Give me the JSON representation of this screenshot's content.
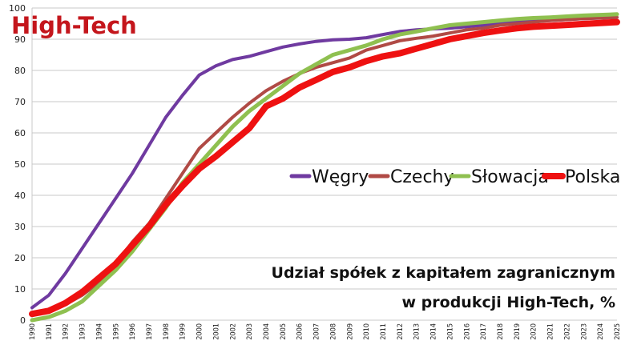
{
  "chart_data": {
    "type": "line",
    "title": "High-Tech",
    "caption_lines": [
      "Udział spółek z kapitałem zagranicznym",
      "w produkcji High-Tech, %"
    ],
    "ylim": [
      0,
      100
    ],
    "yticks": [
      "0",
      "10",
      "20",
      "30",
      "40",
      "50",
      "60",
      "70",
      "80",
      "90",
      "100"
    ],
    "x": [
      "1990",
      "1991",
      "1992",
      "1993",
      "1994",
      "1995",
      "1996",
      "1997",
      "1998",
      "1999",
      "2000",
      "2001",
      "2002",
      "2003",
      "2004",
      "2005",
      "2006",
      "2007",
      "2008",
      "2009",
      "2010",
      "2011",
      "2012",
      "2013",
      "2014",
      "2015",
      "2016",
      "2017",
      "2018",
      "2019",
      "2020",
      "2021",
      "2022",
      "2023",
      "2024",
      "2025"
    ],
    "grid": true,
    "legend_position": "center-right",
    "series": [
      {
        "name": "Węgry",
        "color": "#6f3aa0",
        "width": 4,
        "values": [
          4,
          8,
          15,
          23,
          31,
          39,
          47,
          56,
          65,
          72,
          78.5,
          81.5,
          83.5,
          84.5,
          86,
          87.5,
          88.5,
          89.3,
          89.8,
          90,
          90.5,
          91.5,
          92.5,
          93,
          93.3,
          93.5,
          94,
          94.5,
          95,
          95.5,
          95.8,
          96,
          96.3,
          96.6,
          96.8,
          97
        ]
      },
      {
        "name": "Czechy",
        "color": "#b04a45",
        "width": 4,
        "values": [
          2,
          3,
          5,
          8,
          12,
          18,
          25,
          31,
          39,
          47,
          55,
          60,
          65,
          69.5,
          73.5,
          76.5,
          79,
          81,
          82.5,
          84,
          86.5,
          88,
          89.5,
          90.3,
          91,
          92,
          93,
          93.5,
          94.5,
          95,
          95.5,
          96,
          96.3,
          96.6,
          96.8,
          97
        ]
      },
      {
        "name": "Słowacja",
        "color": "#8fc050",
        "width": 5,
        "values": [
          0,
          1,
          3,
          6,
          11,
          16,
          22,
          29,
          36,
          44,
          50,
          56,
          62,
          67,
          71,
          75,
          79,
          82,
          85,
          86.5,
          88,
          90,
          91.5,
          92.5,
          93.5,
          94.5,
          95,
          95.5,
          96,
          96.5,
          96.8,
          97,
          97.3,
          97.6,
          97.8,
          98
        ]
      },
      {
        "name": "Polska",
        "color": "#ee1111",
        "width": 8,
        "values": [
          2,
          3,
          5.5,
          9,
          13.5,
          18,
          24,
          30,
          37,
          43,
          48.5,
          52.5,
          57,
          61.5,
          68.5,
          71,
          74.5,
          77,
          79.5,
          81,
          83,
          84.5,
          85.5,
          87,
          88.5,
          90,
          91,
          92,
          92.8,
          93.5,
          94,
          94.3,
          94.6,
          94.9,
          95.2,
          95.5
        ]
      }
    ]
  }
}
